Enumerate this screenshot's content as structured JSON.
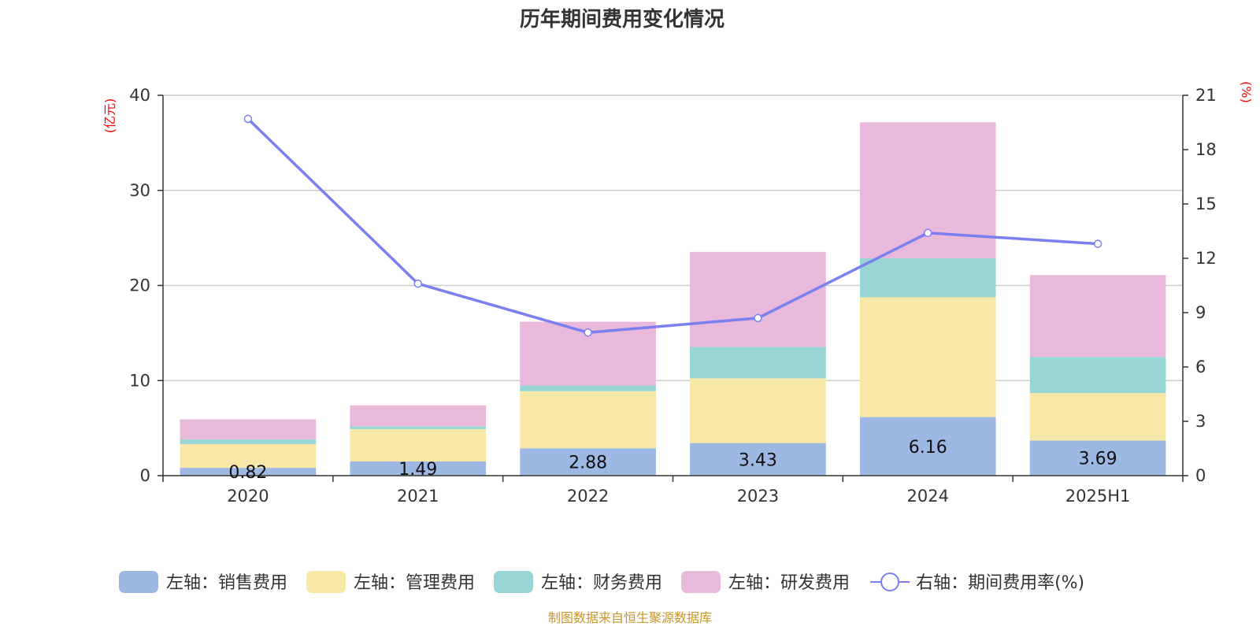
{
  "chart_data": {
    "type": "bar",
    "title": "历年期间费用变化情况",
    "categories": [
      "2020",
      "2021",
      "2022",
      "2023",
      "2024",
      "2025H1"
    ],
    "left_axis": {
      "unit": "(亿元)",
      "ylim": [
        0,
        40
      ],
      "ticks": [
        "0",
        "10",
        "20",
        "30",
        "40"
      ],
      "unit_color": "#ff0000"
    },
    "right_axis": {
      "unit": "(%)",
      "ylim": [
        0,
        21
      ],
      "ticks": [
        "0",
        "3",
        "6",
        "9",
        "12",
        "15",
        "18",
        "21"
      ],
      "unit_color": "#ff0000"
    },
    "grid": true,
    "legend_position": "bottom",
    "series": [
      {
        "name": "左轴：销售费用",
        "type": "bar",
        "stack": true,
        "color": "#9db8e3",
        "values": [
          0.82,
          1.49,
          2.88,
          3.43,
          6.16,
          3.69
        ],
        "labels": [
          "0.82",
          "1.49",
          "2.88",
          "3.43",
          "6.16",
          "3.69"
        ]
      },
      {
        "name": "左轴：管理费用",
        "type": "bar",
        "stack": true,
        "color": "#f8e8a8",
        "values": [
          2.5,
          3.4,
          6.0,
          6.8,
          12.6,
          5.0
        ]
      },
      {
        "name": "左轴：财务费用",
        "type": "bar",
        "stack": true,
        "color": "#98d5d5",
        "values": [
          0.5,
          0.3,
          0.6,
          3.3,
          4.1,
          3.8
        ]
      },
      {
        "name": "左轴：研发费用",
        "type": "bar",
        "stack": true,
        "color": "#e8b9da",
        "values": [
          2.1,
          2.2,
          6.7,
          10.0,
          14.3,
          8.6
        ]
      },
      {
        "name": "右轴：期间费用率(%)",
        "type": "line",
        "axis": "right",
        "color": "#7b7ff0",
        "values": [
          19.7,
          10.6,
          7.9,
          8.7,
          13.4,
          12.8
        ]
      }
    ],
    "source": "制图数据来自恒生聚源数据库",
    "source_color": "#c8962a"
  }
}
